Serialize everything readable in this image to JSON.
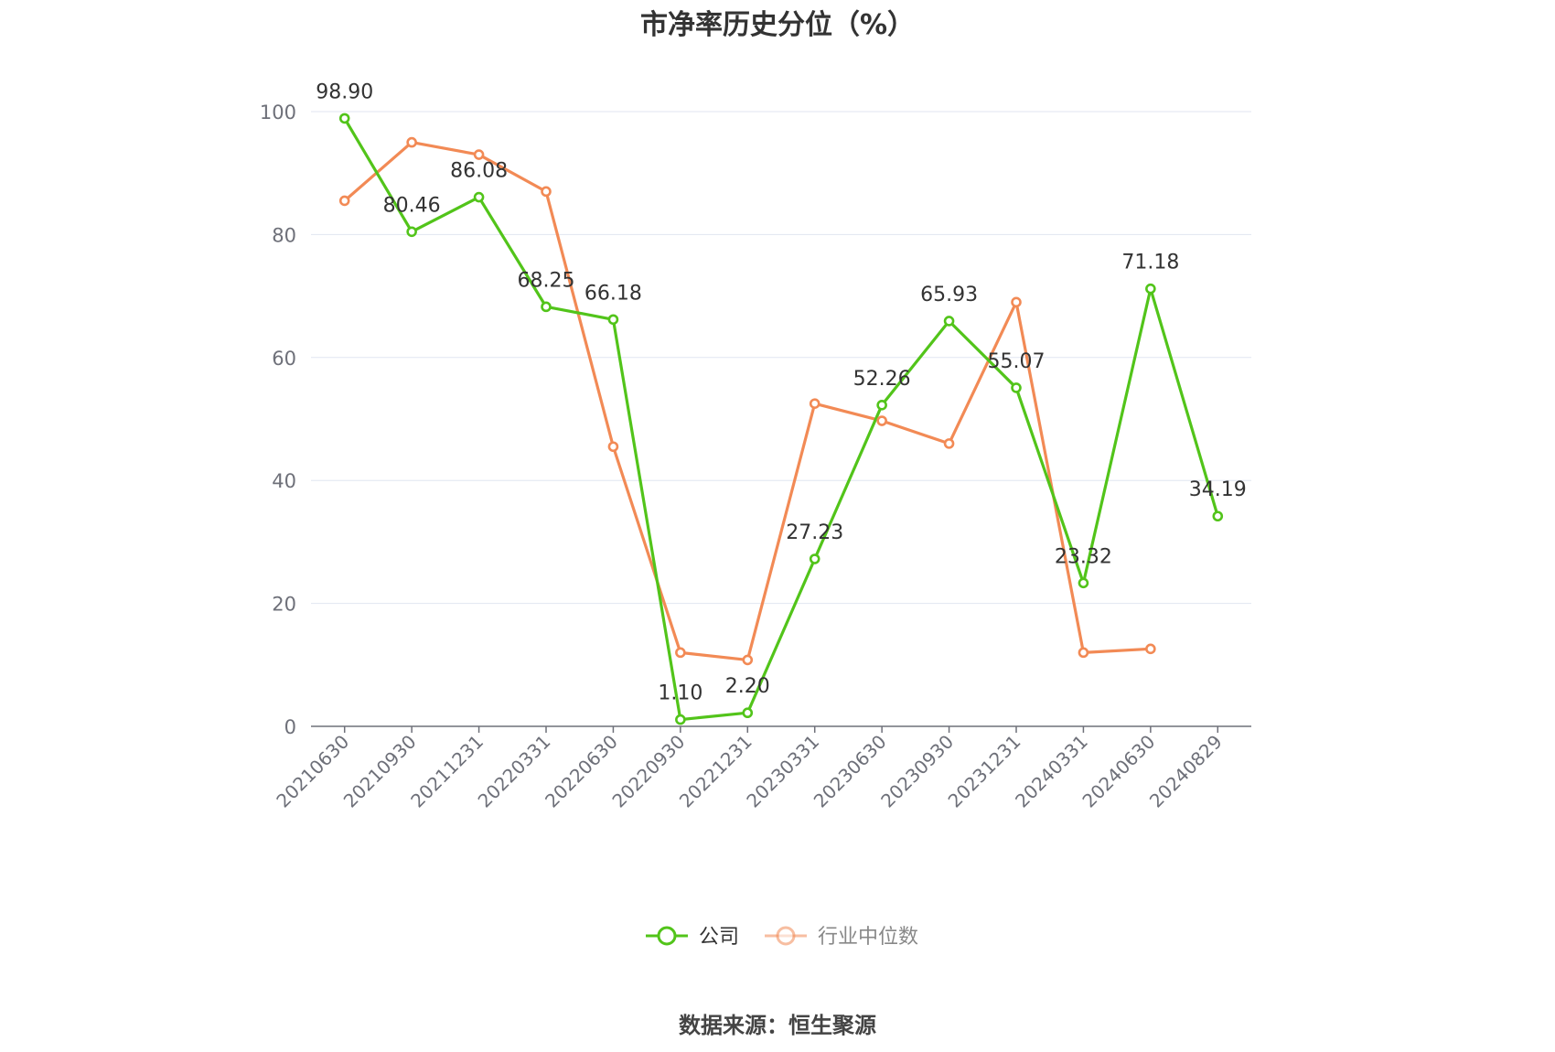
{
  "chart_data": {
    "type": "line",
    "title": "市净率历史分位（%）",
    "categories": [
      "20210630",
      "20210930",
      "20211231",
      "20220331",
      "20220630",
      "20220930",
      "20221231",
      "20230331",
      "20230630",
      "20230930",
      "20231231",
      "20240331",
      "20240630",
      "20240829"
    ],
    "ylim": [
      0,
      100
    ],
    "yticks": [
      0,
      20,
      40,
      60,
      80,
      100
    ],
    "grid": true,
    "legend_position": "bottom",
    "series": [
      {
        "name": "公司",
        "color": "#52c41a",
        "values": [
          98.9,
          80.46,
          86.08,
          68.25,
          66.18,
          1.1,
          2.2,
          27.23,
          52.26,
          65.93,
          55.07,
          23.32,
          71.18,
          34.19
        ],
        "labels": [
          "98.90",
          "80.46",
          "86.08",
          "68.25",
          "66.18",
          "1.10",
          "2.20",
          "27.23",
          "52.26",
          "65.93",
          "55.07",
          "23.32",
          "71.18",
          "34.19"
        ]
      },
      {
        "name": "行业中位数",
        "color": "#f28a55",
        "values": [
          85.5,
          95.0,
          93.0,
          87.0,
          45.5,
          12.0,
          10.8,
          52.5,
          49.7,
          46.0,
          69.0,
          12.0,
          12.6,
          null
        ]
      }
    ]
  },
  "footer": {
    "source": "数据来源：恒生聚源"
  }
}
